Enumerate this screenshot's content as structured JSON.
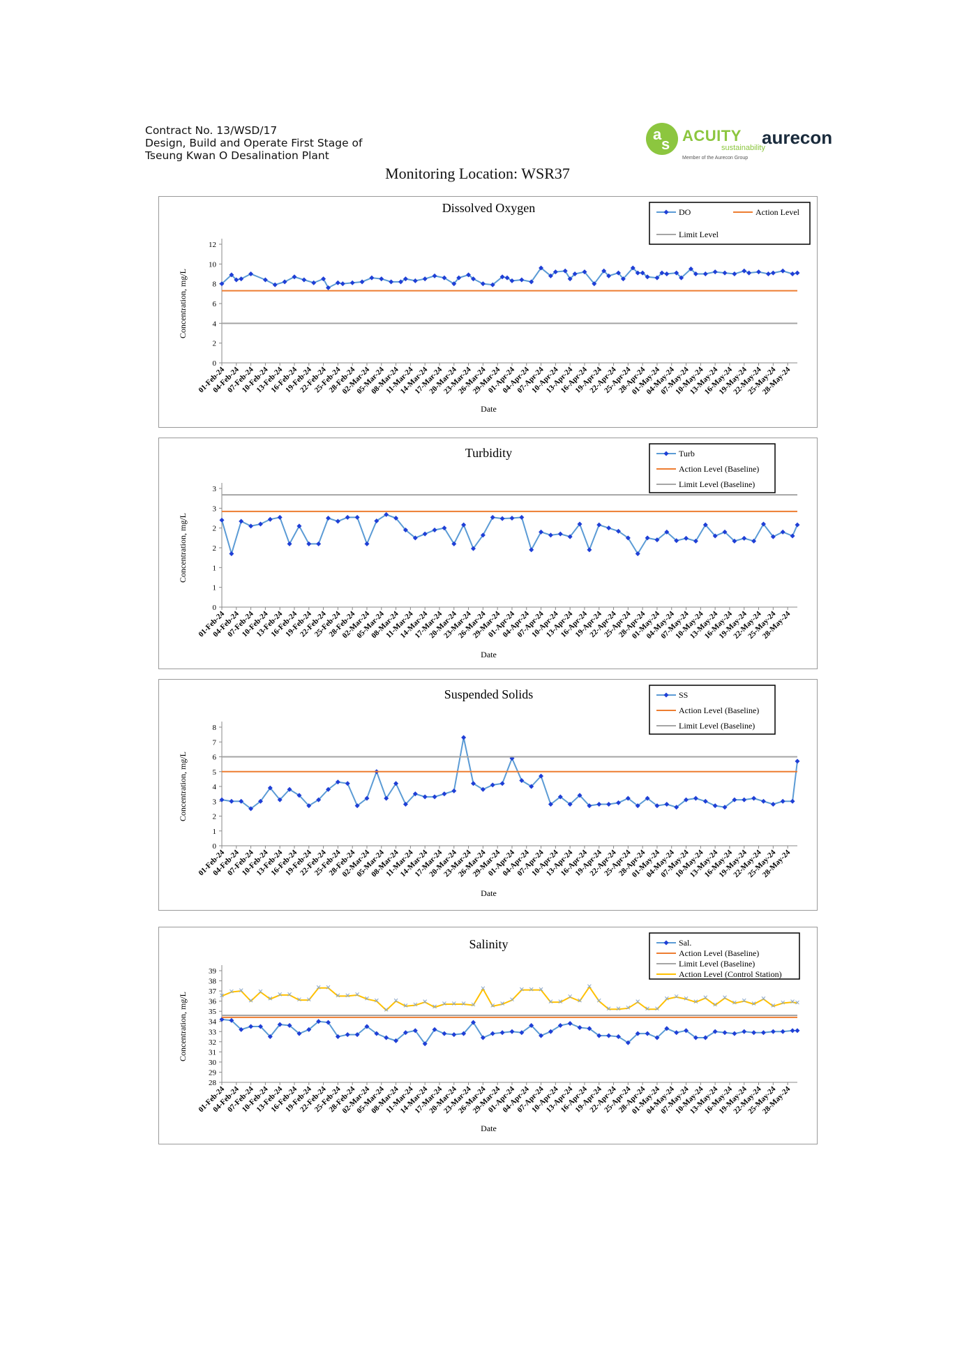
{
  "header": {
    "line1": "Contract No. 13/WSD/17",
    "line2": "Design, Build and Operate First Stage of",
    "line3": "Tseung Kwan O Desalination Plant"
  },
  "logos": {
    "acuity_mark": "a",
    "acuity_mark2": "s",
    "acuity_word": "ACUITY",
    "acuity_sub": "sustainability",
    "acuity_member": "Member of the Aurecon Group",
    "aurecon": "aurecon",
    "acuity_color": "#8cc63f"
  },
  "monitoring_title": "Monitoring Location: WSR37",
  "chart_data": [
    {
      "type": "line",
      "title": "Dissolved Oxygen",
      "xlabel": "Date",
      "ylabel": "Concentration, mg/L",
      "ylim": [
        0,
        12
      ],
      "yticks": [
        "0",
        "2",
        "4",
        "6",
        "8",
        "10",
        "12"
      ],
      "legend_placement": "top-right",
      "grid": false,
      "x_tick_labels": [
        "01-Feb-24",
        "04-Feb-24",
        "07-Feb-24",
        "10-Feb-24",
        "13-Feb-24",
        "16-Feb-24",
        "19-Feb-24",
        "22-Feb-24",
        "25-Feb-24",
        "28-Feb-24",
        "02-Mar-24",
        "05-Mar-24",
        "08-Mar-24",
        "11-Mar-24",
        "14-Mar-24",
        "17-Mar-24",
        "20-Mar-24",
        "23-Mar-24",
        "26-Mar-24",
        "29-Mar-24",
        "01-Apr-24",
        "04-Apr-24",
        "07-Apr-24",
        "10-Apr-24",
        "13-Apr-24",
        "16-Apr-24",
        "19-Apr-24",
        "22-Apr-24",
        "25-Apr-24",
        "28-Apr-24",
        "01-May-24",
        "04-May-24",
        "07-May-24",
        "10-May-24",
        "13-May-24",
        "16-May-24",
        "19-May-24",
        "22-May-24",
        "25-May-24",
        "28-May-24"
      ],
      "series": [
        {
          "name": "DO",
          "color": "#1f3fd6",
          "marker": "diamond",
          "line_color": "#5b9bd5",
          "x": [
            0,
            2,
            3,
            4,
            6,
            9,
            11,
            13,
            15,
            17,
            19,
            21,
            22,
            24,
            25,
            27,
            29,
            31,
            33,
            35,
            37,
            38,
            40,
            42,
            44,
            46,
            48,
            49,
            51,
            52,
            54,
            56,
            58,
            59,
            60,
            62,
            64,
            66,
            68,
            69,
            71,
            72,
            73,
            75,
            77,
            79,
            80,
            82,
            83,
            85,
            86,
            87,
            88,
            90,
            91,
            92,
            94,
            95,
            97,
            98,
            100,
            102,
            104,
            106,
            108,
            109,
            111,
            113,
            114,
            116,
            118,
            119
          ],
          "values": [
            8.0,
            8.9,
            8.4,
            8.5,
            9.0,
            8.4,
            7.9,
            8.2,
            8.7,
            8.4,
            8.1,
            8.5,
            7.6,
            8.1,
            8.0,
            8.1,
            8.2,
            8.6,
            8.5,
            8.2,
            8.2,
            8.5,
            8.3,
            8.5,
            8.8,
            8.6,
            8.0,
            8.6,
            8.9,
            8.5,
            8.0,
            7.9,
            8.7,
            8.6,
            8.3,
            8.4,
            8.2,
            9.6,
            8.8,
            9.2,
            9.3,
            8.5,
            9.0,
            9.2,
            8.0,
            9.3,
            8.8,
            9.1,
            8.5,
            9.6,
            9.1,
            9.1,
            8.7,
            8.6,
            9.1,
            9.0,
            9.1,
            8.6,
            9.5,
            9.0,
            9.0,
            9.2,
            9.1,
            9.0,
            9.3,
            9.1,
            9.2,
            9.0,
            9.1,
            9.3,
            9.0,
            9.1
          ]
        },
        {
          "name": "Action Level",
          "color": "#ed7d31",
          "values": [
            7.3
          ]
        },
        {
          "name": "Limit Level",
          "color": "#a5a5a5",
          "values": [
            4.0
          ]
        }
      ]
    },
    {
      "type": "line",
      "title": "Turbidity",
      "xlabel": "Date",
      "ylabel": "Concentration, mg/L",
      "ylim": [
        0,
        3
      ],
      "yticks": [
        "0",
        "1",
        "1",
        "2",
        "2",
        "3",
        "3"
      ],
      "legend_placement": "top-right",
      "grid": false,
      "x_tick_labels": [
        "01-Feb-24",
        "04-Feb-24",
        "07-Feb-24",
        "10-Feb-24",
        "13-Feb-24",
        "16-Feb-24",
        "19-Feb-24",
        "22-Feb-24",
        "25-Feb-24",
        "28-Feb-24",
        "02-Mar-24",
        "05-Mar-24",
        "08-Mar-24",
        "11-Mar-24",
        "14-Mar-24",
        "17-Mar-24",
        "20-Mar-24",
        "23-Mar-24",
        "26-Mar-24",
        "29-Mar-24",
        "01-Apr-24",
        "04-Apr-24",
        "07-Apr-24",
        "10-Apr-24",
        "13-Apr-24",
        "16-Apr-24",
        "19-Apr-24",
        "22-Apr-24",
        "25-Apr-24",
        "28-Apr-24",
        "01-May-24",
        "04-May-24",
        "07-May-24",
        "10-May-24",
        "13-May-24",
        "16-May-24",
        "19-May-24",
        "22-May-24",
        "25-May-24",
        "28-May-24"
      ],
      "series": [
        {
          "name": "Turb",
          "color": "#1f3fd6",
          "marker": "diamond",
          "line_color": "#5b9bd5",
          "x": [
            0,
            2,
            4,
            6,
            8,
            10,
            12,
            14,
            16,
            18,
            20,
            22,
            24,
            26,
            28,
            30,
            32,
            34,
            36,
            38,
            40,
            42,
            44,
            46,
            48,
            50,
            52,
            54,
            56,
            58,
            60,
            62,
            64,
            66,
            68,
            70,
            72,
            74,
            76,
            78,
            80,
            82,
            84,
            86,
            88,
            90,
            92,
            94,
            96,
            98,
            100,
            102,
            104,
            106,
            108,
            110,
            112,
            114,
            116,
            118,
            119
          ],
          "values": [
            2.2,
            1.35,
            2.17,
            2.05,
            2.1,
            2.22,
            2.27,
            1.6,
            2.05,
            1.6,
            1.6,
            2.25,
            2.17,
            2.27,
            2.27,
            1.6,
            2.18,
            2.34,
            2.25,
            1.95,
            1.75,
            1.85,
            1.95,
            2.0,
            1.6,
            2.08,
            1.48,
            1.82,
            2.27,
            2.24,
            2.25,
            2.27,
            1.45,
            1.9,
            1.82,
            1.85,
            1.78,
            2.1,
            1.45,
            2.08,
            2.0,
            1.92,
            1.75,
            1.35,
            1.75,
            1.7,
            1.9,
            1.68,
            1.74,
            1.67,
            2.08,
            1.8,
            1.9,
            1.67,
            1.74,
            1.67,
            2.1,
            1.78,
            1.9,
            1.8,
            2.08
          ]
        },
        {
          "name": "Action Level (Baseline)",
          "color": "#ed7d31",
          "values": [
            2.42
          ]
        },
        {
          "name": "Limit Level (Baseline)",
          "color": "#a5a5a5",
          "values": [
            2.84
          ]
        }
      ]
    },
    {
      "type": "line",
      "title": "Suspended Solids",
      "xlabel": "Date",
      "ylabel": "Concentration, mg/L",
      "ylim": [
        0,
        8
      ],
      "yticks": [
        "0",
        "1",
        "2",
        "3",
        "4",
        "5",
        "6",
        "7",
        "8"
      ],
      "legend_placement": "top-right",
      "grid": false,
      "x_tick_labels": [
        "01-Feb-24",
        "04-Feb-24",
        "07-Feb-24",
        "10-Feb-24",
        "13-Feb-24",
        "16-Feb-24",
        "19-Feb-24",
        "22-Feb-24",
        "25-Feb-24",
        "28-Feb-24",
        "02-Mar-24",
        "05-Mar-24",
        "08-Mar-24",
        "11-Mar-24",
        "14-Mar-24",
        "17-Mar-24",
        "20-Mar-24",
        "23-Mar-24",
        "26-Mar-24",
        "29-Mar-24",
        "01-Apr-24",
        "04-Apr-24",
        "07-Apr-24",
        "10-Apr-24",
        "13-Apr-24",
        "16-Apr-24",
        "19-Apr-24",
        "22-Apr-24",
        "25-Apr-24",
        "28-Apr-24",
        "01-May-24",
        "04-May-24",
        "07-May-24",
        "10-May-24",
        "13-May-24",
        "16-May-24",
        "19-May-24",
        "22-May-24",
        "25-May-24",
        "28-May-24"
      ],
      "series": [
        {
          "name": "SS",
          "color": "#1f3fd6",
          "marker": "diamond",
          "line_color": "#5b9bd5",
          "x": [
            0,
            2,
            4,
            6,
            8,
            10,
            12,
            14,
            16,
            18,
            20,
            22,
            24,
            26,
            28,
            30,
            32,
            34,
            36,
            38,
            40,
            42,
            44,
            46,
            48,
            50,
            52,
            54,
            56,
            58,
            60,
            62,
            64,
            66,
            68,
            70,
            72,
            74,
            76,
            78,
            80,
            82,
            84,
            86,
            88,
            90,
            92,
            94,
            96,
            98,
            100,
            102,
            104,
            106,
            108,
            110,
            112,
            114,
            116,
            118,
            119
          ],
          "values": [
            3.1,
            3.0,
            3.0,
            2.5,
            3.0,
            3.9,
            3.1,
            3.8,
            3.4,
            2.7,
            3.1,
            3.8,
            4.3,
            4.2,
            2.7,
            3.2,
            5.0,
            3.2,
            4.2,
            2.8,
            3.5,
            3.3,
            3.3,
            3.5,
            3.7,
            7.3,
            4.2,
            3.8,
            4.1,
            4.2,
            5.9,
            4.4,
            4.0,
            4.7,
            2.8,
            3.3,
            2.8,
            3.4,
            2.7,
            2.8,
            2.8,
            2.9,
            3.2,
            2.7,
            3.2,
            2.7,
            2.8,
            2.6,
            3.1,
            3.2,
            3.0,
            2.7,
            2.6,
            3.1,
            3.1,
            3.2,
            3.0,
            2.8,
            3.0,
            3.0,
            5.7
          ]
        },
        {
          "name": "Action Level (Baseline)",
          "color": "#ed7d31",
          "values": [
            5.0
          ]
        },
        {
          "name": "Limit Level (Baseline)",
          "color": "#a5a5a5",
          "values": [
            6.0
          ]
        }
      ]
    },
    {
      "type": "line",
      "title": "Salinity",
      "xlabel": "Date",
      "ylabel": "Concentration, mg/L",
      "ylim": [
        28,
        39
      ],
      "yticks": [
        "28",
        "29",
        "30",
        "31",
        "32",
        "33",
        "34",
        "35",
        "36",
        "37",
        "38",
        "39"
      ],
      "legend_placement": "top-right",
      "grid": false,
      "x_tick_labels": [
        "01-Feb-24",
        "04-Feb-24",
        "07-Feb-24",
        "10-Feb-24",
        "13-Feb-24",
        "16-Feb-24",
        "19-Feb-24",
        "22-Feb-24",
        "25-Feb-24",
        "28-Feb-24",
        "02-Mar-24",
        "05-Mar-24",
        "08-Mar-24",
        "11-Mar-24",
        "14-Mar-24",
        "17-Mar-24",
        "20-Mar-24",
        "23-Mar-24",
        "26-Mar-24",
        "29-Mar-24",
        "01-Apr-24",
        "04-Apr-24",
        "07-Apr-24",
        "10-Apr-24",
        "13-Apr-24",
        "16-Apr-24",
        "19-Apr-24",
        "22-Apr-24",
        "25-Apr-24",
        "28-Apr-24",
        "01-May-24",
        "04-May-24",
        "07-May-24",
        "10-May-24",
        "13-May-24",
        "16-May-24",
        "19-May-24",
        "22-May-24",
        "25-May-24",
        "28-May-24"
      ],
      "series": [
        {
          "name": "Sal.",
          "color": "#1f3fd6",
          "marker": "diamond",
          "line_color": "#5b9bd5",
          "x": [
            0,
            2,
            4,
            6,
            8,
            10,
            12,
            14,
            16,
            18,
            20,
            22,
            24,
            26,
            28,
            30,
            32,
            34,
            36,
            38,
            40,
            42,
            44,
            46,
            48,
            50,
            52,
            54,
            56,
            58,
            60,
            62,
            64,
            66,
            68,
            70,
            72,
            74,
            76,
            78,
            80,
            82,
            84,
            86,
            88,
            90,
            92,
            94,
            96,
            98,
            100,
            102,
            104,
            106,
            108,
            110,
            112,
            114,
            116,
            118,
            119
          ],
          "values": [
            34.2,
            34.1,
            33.2,
            33.5,
            33.5,
            32.5,
            33.7,
            33.6,
            32.8,
            33.2,
            34.0,
            33.9,
            32.5,
            32.7,
            32.7,
            33.5,
            32.8,
            32.4,
            32.1,
            32.9,
            33.1,
            31.8,
            33.2,
            32.8,
            32.7,
            32.8,
            33.9,
            32.4,
            32.8,
            32.9,
            33.0,
            32.9,
            33.6,
            32.6,
            33.0,
            33.6,
            33.8,
            33.4,
            33.3,
            32.6,
            32.6,
            32.5,
            31.9,
            32.8,
            32.8,
            32.4,
            33.3,
            32.9,
            33.1,
            32.4,
            32.4,
            33.0,
            32.9,
            32.8,
            33.0,
            32.9,
            32.9,
            33.0,
            33.0,
            33.1,
            33.1
          ]
        },
        {
          "name": "Action Level (Baseline)",
          "color": "#ed7d31",
          "values": [
            34.4
          ]
        },
        {
          "name": "Limit Level (Baseline)",
          "color": "#a5a5a5",
          "values": [
            34.6
          ]
        },
        {
          "name": "Action Level (Control Station)",
          "color": "#ffc000",
          "x": [
            0,
            2,
            4,
            6,
            8,
            10,
            12,
            14,
            16,
            18,
            20,
            22,
            24,
            26,
            28,
            30,
            32,
            34,
            36,
            38,
            40,
            42,
            44,
            46,
            48,
            50,
            52,
            54,
            56,
            58,
            60,
            62,
            64,
            66,
            68,
            70,
            72,
            74,
            76,
            78,
            80,
            82,
            84,
            86,
            88,
            90,
            92,
            94,
            96,
            98,
            100,
            102,
            104,
            106,
            108,
            110,
            112,
            114,
            116,
            118,
            119
          ],
          "values": [
            36.5,
            36.9,
            37.0,
            36.0,
            36.9,
            36.2,
            36.6,
            36.6,
            36.1,
            36.1,
            37.3,
            37.3,
            36.5,
            36.5,
            36.6,
            36.2,
            36.0,
            35.1,
            36.0,
            35.5,
            35.6,
            35.9,
            35.4,
            35.7,
            35.7,
            35.7,
            35.6,
            37.2,
            35.5,
            35.7,
            36.1,
            37.1,
            37.1,
            37.1,
            35.9,
            35.9,
            36.4,
            36.0,
            37.4,
            36.0,
            35.2,
            35.2,
            35.3,
            35.9,
            35.2,
            35.2,
            36.2,
            36.4,
            36.2,
            35.9,
            36.3,
            35.6,
            36.3,
            35.8,
            36.0,
            35.7,
            36.2,
            35.5,
            35.8,
            35.9,
            35.8
          ]
        }
      ]
    }
  ]
}
